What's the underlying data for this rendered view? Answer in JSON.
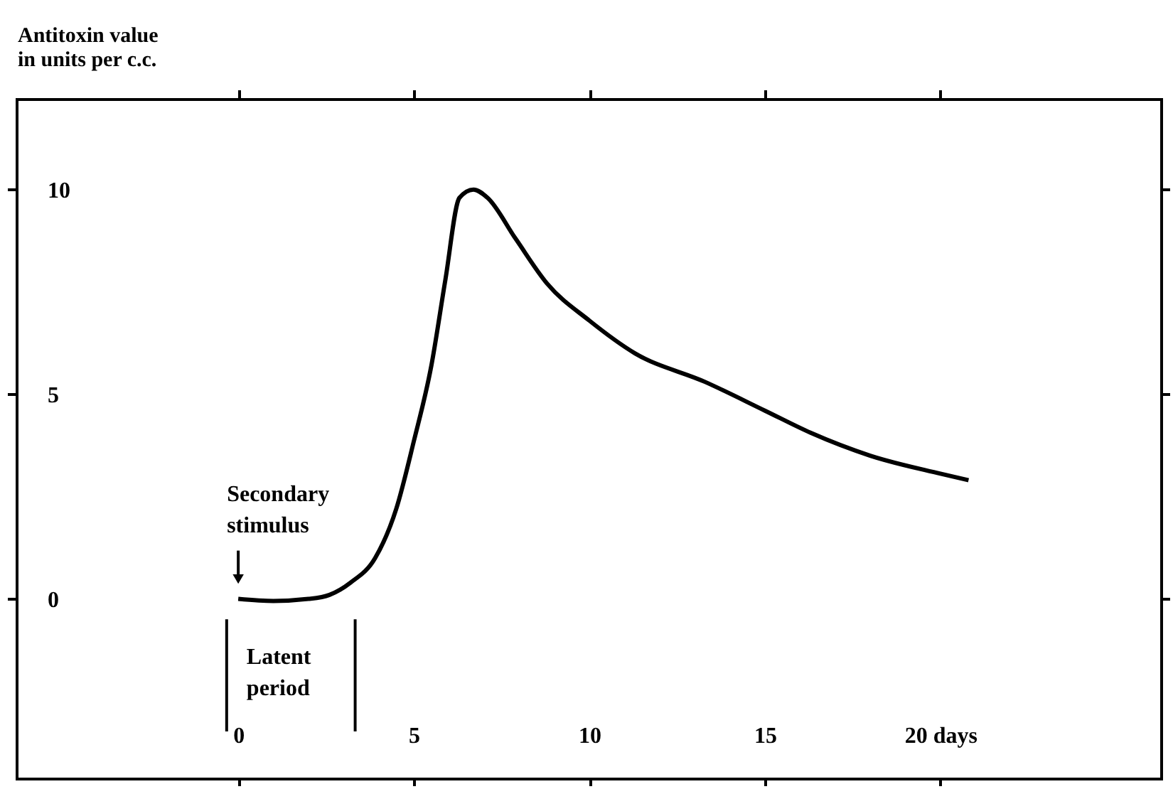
{
  "chart_data": {
    "type": "line",
    "ylabel": "Antitoxin value\nin units per c.c.",
    "x": [
      0,
      1,
      2,
      2.6,
      3.2,
      3.9,
      4.5,
      5.0,
      5.5,
      5.9,
      6.3,
      6.7,
      7.1,
      7.9,
      8.8,
      10.0,
      11.3,
      13.3,
      15.0,
      16.3,
      18.0,
      20.0,
      20.8
    ],
    "series": [
      {
        "color": "#000000",
        "values": [
          0,
          -0.05,
          0,
          0.1,
          0.4,
          1.0,
          2.2,
          3.85,
          5.7,
          7.8,
          9.8,
          10.0,
          9.8,
          8.8,
          7.7,
          6.8,
          6.0,
          5.3,
          4.6,
          4.06,
          3.5,
          3.06,
          2.9
        ]
      }
    ],
    "xlim": [
      -6.3,
      26.3
    ],
    "xticks": [
      0,
      5,
      10,
      15,
      {
        "value": 20,
        "label": "20 days"
      }
    ],
    "ylim": [
      -4.4,
      12.2
    ],
    "yticks": [
      0,
      5,
      10
    ],
    "annotations": [
      {
        "text": "Secondary stimulus",
        "x": 0,
        "y": 0
      }
    ],
    "ref_lines": [
      {
        "axis": "x",
        "value": -0.33,
        "label": "Latent period"
      },
      {
        "axis": "x",
        "value": 3.33
      }
    ],
    "grid": false,
    "marker": "none",
    "line_style": "solid"
  }
}
